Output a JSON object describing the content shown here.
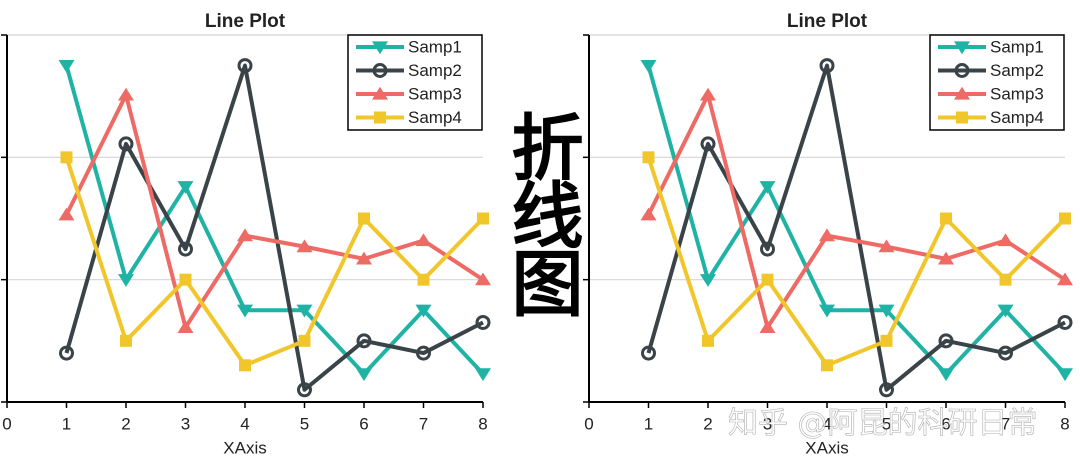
{
  "chart_data": [
    {
      "type": "line",
      "title": "Line Plot",
      "x_label": "XAxis",
      "x": [
        1,
        2,
        3,
        4,
        5,
        6,
        7,
        8
      ],
      "xlim": [
        0,
        8
      ],
      "xticks": [
        0,
        1,
        2,
        3,
        4,
        5,
        6,
        7,
        8
      ],
      "ylim": [
        0,
        3
      ],
      "yticks": [
        0,
        1,
        2,
        3
      ],
      "grid": true,
      "legend": "upper right",
      "series": [
        {
          "name": "Samp1",
          "color": "#1fb3a6",
          "marker": "triangle-down",
          "values": [
            2.75,
            1.0,
            1.76,
            0.75,
            0.75,
            0.23,
            0.75,
            0.23
          ]
        },
        {
          "name": "Samp2",
          "color": "#3a4448",
          "marker": "circle",
          "values": [
            0.4,
            2.11,
            1.25,
            2.75,
            0.1,
            0.5,
            0.4,
            0.65
          ]
        },
        {
          "name": "Samp3",
          "color": "#ee6a65",
          "marker": "triangle-up",
          "values": [
            1.53,
            2.51,
            0.61,
            1.36,
            1.27,
            1.17,
            1.32,
            1.0
          ]
        },
        {
          "name": "Samp4",
          "color": "#f1c62b",
          "marker": "square",
          "values": [
            2.0,
            0.5,
            1.0,
            0.3,
            0.5,
            1.5,
            1.0,
            1.5
          ]
        }
      ]
    },
    {
      "type": "line",
      "title": "Line Plot",
      "x_label": "XAxis",
      "x": [
        1,
        2,
        3,
        4,
        5,
        6,
        7,
        8
      ],
      "xlim": [
        0,
        8
      ],
      "xticks": [
        0,
        1,
        2,
        3,
        4,
        5,
        6,
        7,
        8
      ],
      "ylim": [
        0,
        3
      ],
      "yticks": [
        0,
        1,
        2,
        3
      ],
      "grid": true,
      "legend": "upper right",
      "series": [
        {
          "name": "Samp1",
          "color": "#1fb3a6",
          "marker": "triangle-down",
          "values": [
            2.75,
            1.0,
            1.76,
            0.75,
            0.75,
            0.23,
            0.75,
            0.23
          ]
        },
        {
          "name": "Samp2",
          "color": "#3a4448",
          "marker": "circle",
          "values": [
            0.4,
            2.11,
            1.25,
            2.75,
            0.1,
            0.5,
            0.4,
            0.65
          ]
        },
        {
          "name": "Samp3",
          "color": "#ee6a65",
          "marker": "triangle-up",
          "values": [
            1.53,
            2.51,
            0.61,
            1.36,
            1.27,
            1.17,
            1.32,
            1.0
          ]
        },
        {
          "name": "Samp4",
          "color": "#f1c62b",
          "marker": "square",
          "values": [
            2.0,
            0.5,
            1.0,
            0.3,
            0.5,
            1.5,
            1.0,
            1.5
          ]
        }
      ]
    }
  ],
  "decoration": {
    "calligraphy": "折线图",
    "watermark": "知乎 @阿昆的科研日常"
  }
}
